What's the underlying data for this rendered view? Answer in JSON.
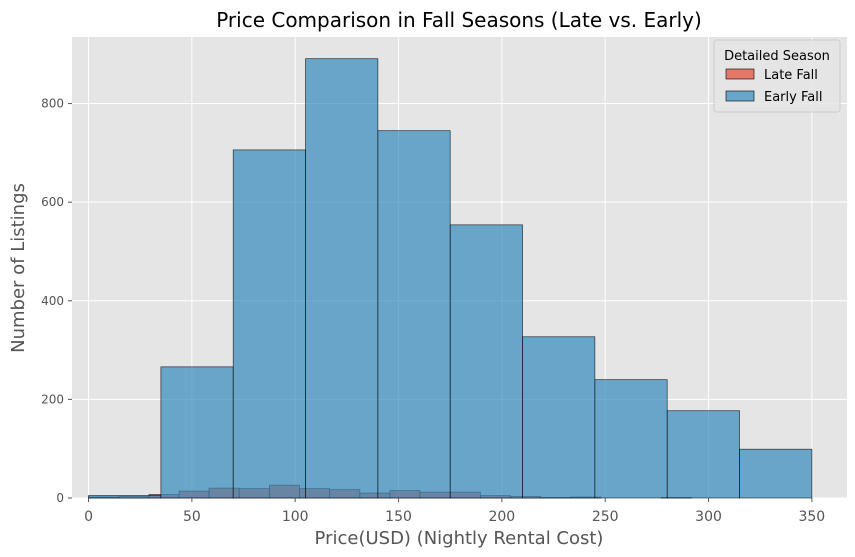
{
  "chart_data": {
    "type": "bar",
    "subtype": "overlaid-histogram",
    "title": "Price Comparison in Fall Seasons (Late vs. Early)",
    "xlabel": "Price(USD) (Nightly Rental Cost)",
    "ylabel": "Number of Listings",
    "xlim": [
      -8,
      367
    ],
    "ylim": [
      0,
      935
    ],
    "xticks": [
      0,
      50,
      100,
      150,
      200,
      250,
      300,
      350
    ],
    "yticks": [
      0,
      200,
      400,
      600,
      800
    ],
    "grid": true,
    "legend": {
      "title": "Detailed Season",
      "placement": "top-right"
    },
    "series": [
      {
        "name": "Late Fall",
        "color": "#E24A33",
        "bins": [
          [
            0,
            14.6,
            2
          ],
          [
            14.6,
            29.2,
            3
          ],
          [
            29.2,
            43.8,
            7
          ],
          [
            43.8,
            58.3,
            14
          ],
          [
            58.3,
            72.9,
            20
          ],
          [
            72.9,
            87.5,
            19
          ],
          [
            87.5,
            102.1,
            26
          ],
          [
            102.1,
            116.7,
            19
          ],
          [
            116.7,
            131.3,
            17
          ],
          [
            131.3,
            145.8,
            10
          ],
          [
            145.8,
            160.4,
            15
          ],
          [
            160.4,
            175,
            12
          ],
          [
            175,
            189.6,
            12
          ],
          [
            189.6,
            204.2,
            5
          ],
          [
            204.2,
            218.8,
            3
          ],
          [
            218.8,
            233.3,
            1
          ],
          [
            233.3,
            247.9,
            2
          ],
          [
            247.9,
            262.5,
            0
          ],
          [
            262.5,
            277.1,
            0
          ],
          [
            277.1,
            291.7,
            1
          ],
          [
            291.7,
            306.3,
            0
          ],
          [
            306.3,
            320.8,
            0
          ],
          [
            320.8,
            335.4,
            0
          ],
          [
            335.4,
            350,
            0
          ]
        ]
      },
      {
        "name": "Early Fall",
        "color": "#348ABD",
        "bins": [
          [
            0,
            35,
            5
          ],
          [
            35,
            70,
            266
          ],
          [
            70,
            105,
            706
          ],
          [
            105,
            140,
            891
          ],
          [
            140,
            175,
            745
          ],
          [
            175,
            210,
            554
          ],
          [
            210,
            245,
            327
          ],
          [
            245,
            280,
            240
          ],
          [
            280,
            315,
            177
          ],
          [
            315,
            350,
            99
          ]
        ]
      }
    ]
  }
}
